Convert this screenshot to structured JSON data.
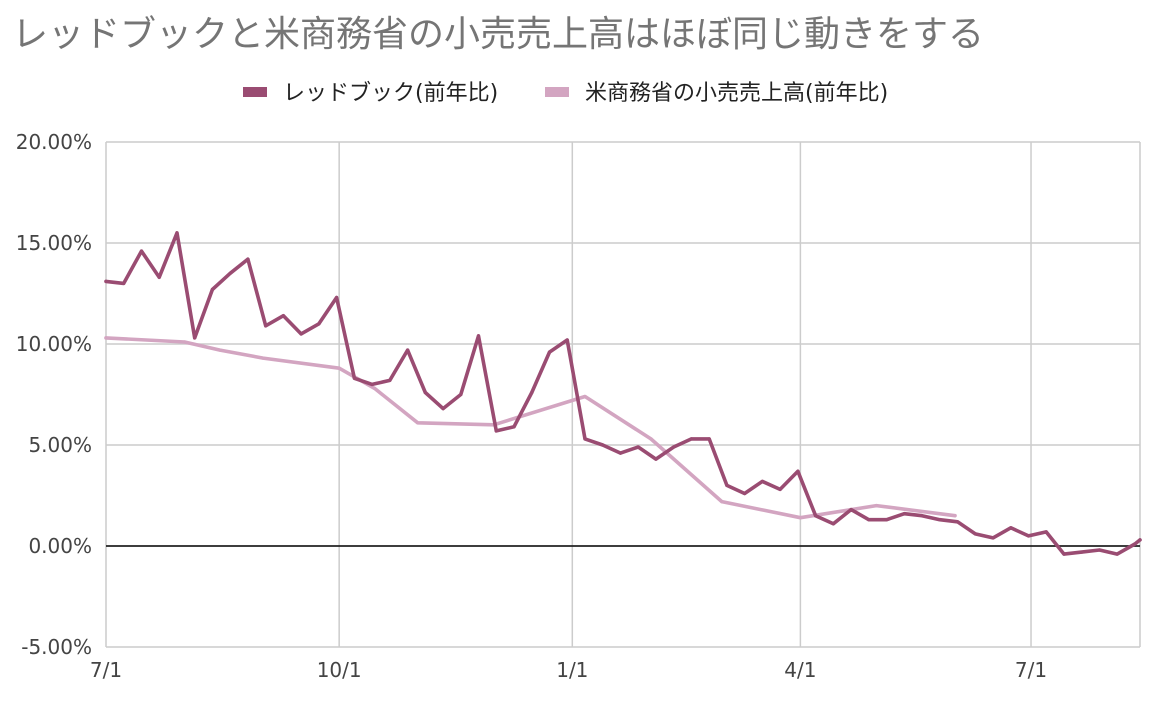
{
  "chart_data": {
    "type": "line",
    "title": "レッドブックと米商務省の小売売上高はほぼ同じ動きをする",
    "legend_position": "top",
    "grid": true,
    "colors": {
      "series_1": "#9a4c72",
      "series_2": "#d3a5c1",
      "grid": "#cccccc",
      "zero_line": "#222222"
    },
    "ylim": [
      -5,
      20
    ],
    "y_ticks": [
      20,
      15,
      10,
      5,
      0,
      -5
    ],
    "y_tick_labels": [
      "20.00%",
      "15.00%",
      "10.00%",
      "5.00%",
      "0.00%",
      "-5.00%"
    ],
    "x_tick_labels": [
      "7/1",
      "10/1",
      "1/1",
      "4/1",
      "7/1"
    ],
    "xlim": [
      "2021-07-01",
      "2022-08-13"
    ],
    "x_ticks": [
      "2021-07-01",
      "2021-10-01",
      "2022-01-01",
      "2022-04-01",
      "2022-07-01"
    ],
    "series": [
      {
        "name": "レッドブック(前年比)",
        "points": [
          [
            "2021-07-01",
            13.1
          ],
          [
            "2021-07-08",
            13.0
          ],
          [
            "2021-07-15",
            14.6
          ],
          [
            "2021-07-22",
            13.3
          ],
          [
            "2021-07-29",
            15.5
          ],
          [
            "2021-08-05",
            10.3
          ],
          [
            "2021-08-12",
            12.7
          ],
          [
            "2021-08-19",
            13.5
          ],
          [
            "2021-08-26",
            14.2
          ],
          [
            "2021-09-02",
            10.9
          ],
          [
            "2021-09-09",
            11.4
          ],
          [
            "2021-09-16",
            10.5
          ],
          [
            "2021-09-23",
            11.0
          ],
          [
            "2021-09-30",
            12.3
          ],
          [
            "2021-10-07",
            8.3
          ],
          [
            "2021-10-14",
            8.0
          ],
          [
            "2021-10-21",
            8.2
          ],
          [
            "2021-10-28",
            9.7
          ],
          [
            "2021-11-04",
            7.6
          ],
          [
            "2021-11-11",
            6.8
          ],
          [
            "2021-11-18",
            7.5
          ],
          [
            "2021-11-25",
            10.4
          ],
          [
            "2021-12-02",
            5.7
          ],
          [
            "2021-12-09",
            5.9
          ],
          [
            "2021-12-16",
            7.6
          ],
          [
            "2021-12-23",
            9.6
          ],
          [
            "2021-12-30",
            10.2
          ],
          [
            "2022-01-06",
            5.3
          ],
          [
            "2022-01-13",
            5.0
          ],
          [
            "2022-01-20",
            4.6
          ],
          [
            "2022-01-27",
            4.9
          ],
          [
            "2022-02-03",
            4.3
          ],
          [
            "2022-02-10",
            4.9
          ],
          [
            "2022-02-17",
            5.3
          ],
          [
            "2022-02-24",
            5.3
          ],
          [
            "2022-03-03",
            3.0
          ],
          [
            "2022-03-10",
            2.6
          ],
          [
            "2022-03-17",
            3.2
          ],
          [
            "2022-03-24",
            2.8
          ],
          [
            "2022-03-31",
            3.7
          ],
          [
            "2022-04-07",
            1.5
          ],
          [
            "2022-04-14",
            1.1
          ],
          [
            "2022-04-21",
            1.8
          ],
          [
            "2022-04-28",
            1.3
          ],
          [
            "2022-05-05",
            1.3
          ],
          [
            "2022-05-12",
            1.6
          ],
          [
            "2022-05-19",
            1.5
          ],
          [
            "2022-05-26",
            1.3
          ],
          [
            "2022-06-02",
            1.2
          ],
          [
            "2022-06-09",
            0.6
          ],
          [
            "2022-06-16",
            0.4
          ],
          [
            "2022-06-23",
            0.9
          ],
          [
            "2022-06-30",
            0.5
          ],
          [
            "2022-07-07",
            0.7
          ],
          [
            "2022-07-14",
            -0.4
          ],
          [
            "2022-07-21",
            -0.3
          ],
          [
            "2022-07-28",
            -0.2
          ],
          [
            "2022-08-04",
            -0.4
          ],
          [
            "2022-08-11",
            0.1
          ],
          [
            "2022-08-13",
            0.3
          ]
        ]
      },
      {
        "name": "米商務省の小売売上高(前年比)",
        "points": [
          [
            "2021-07-01",
            10.3
          ],
          [
            "2021-08-01",
            10.1
          ],
          [
            "2021-08-15",
            9.7
          ],
          [
            "2021-09-01",
            9.3
          ],
          [
            "2021-10-01",
            8.8
          ],
          [
            "2021-10-15",
            7.8
          ],
          [
            "2021-11-01",
            6.1
          ],
          [
            "2021-12-01",
            6.0
          ],
          [
            "2022-01-06",
            7.4
          ],
          [
            "2022-02-01",
            5.3
          ],
          [
            "2022-03-01",
            2.2
          ],
          [
            "2022-04-01",
            1.4
          ],
          [
            "2022-05-01",
            2.0
          ],
          [
            "2022-06-01",
            1.5
          ]
        ]
      }
    ]
  }
}
